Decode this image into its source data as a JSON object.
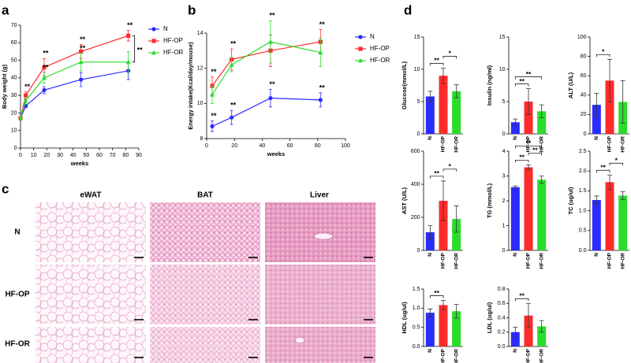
{
  "panel_labels": {
    "a": "a",
    "b": "b",
    "c": "c",
    "d": "d"
  },
  "histology": {
    "columns": [
      "eWAT",
      "BAT",
      "Liver"
    ],
    "rows": [
      "N",
      "HF-OP",
      "HF-OR"
    ]
  },
  "chart_data": [
    {
      "type": "line",
      "ylabel": "Body weight (g)",
      "xlabel": "weeks",
      "x": [
        0,
        4,
        18,
        46,
        82
      ],
      "xlim": [
        0,
        90
      ],
      "xticks": [
        0,
        10,
        20,
        30,
        40,
        50,
        60,
        70,
        80,
        90
      ],
      "ylim": [
        0,
        70
      ],
      "yticks": [
        0,
        10,
        20,
        30,
        40,
        50,
        60,
        70
      ],
      "legend": "right",
      "series": [
        {
          "name": "N",
          "color": "#2b2bff",
          "marker": "circle",
          "values": [
            17,
            24,
            33,
            39,
            44
          ],
          "errors": [
            1,
            1,
            2,
            4,
            5
          ]
        },
        {
          "name": "HF-OP",
          "color": "#ff2b2b",
          "marker": "square",
          "values": [
            17,
            30,
            46,
            55,
            64
          ],
          "errors": [
            1,
            2,
            5,
            4,
            3
          ]
        },
        {
          "name": "HF-OR",
          "color": "#2bdc2b",
          "marker": "triangle",
          "values": [
            17,
            27,
            40,
            49,
            49
          ],
          "errors": [
            1,
            2,
            3,
            5,
            6
          ]
        }
      ],
      "annotations": [
        {
          "text": "**",
          "series": "HF-OP",
          "x": 4
        },
        {
          "text": "**",
          "series": "HF-OP",
          "x": 18
        },
        {
          "text": "**",
          "series": "HF-OR",
          "x": 18
        },
        {
          "text": "**",
          "series": "HF-OP",
          "x": 46
        },
        {
          "text": "**",
          "series": "HF-OR",
          "x": 46
        },
        {
          "text": "**",
          "series": "HF-OP",
          "x": 82
        },
        {
          "text": "**",
          "between": [
            "HF-OP",
            "HF-OR"
          ]
        }
      ]
    },
    {
      "type": "line",
      "ylabel": "Energy intake(Kcal/day/mouse)",
      "xlabel": "weeks",
      "x": [
        4,
        18,
        46,
        82
      ],
      "xlim": [
        0,
        100
      ],
      "xticks": [
        0,
        20,
        40,
        60,
        80,
        100
      ],
      "ylim": [
        8,
        14
      ],
      "yticks": [
        8,
        10,
        12,
        14
      ],
      "legend": "right",
      "series": [
        {
          "name": "N",
          "color": "#2b2bff",
          "marker": "circle",
          "values": [
            8.7,
            9.2,
            10.3,
            10.2
          ],
          "errors": [
            0.3,
            0.4,
            0.5,
            0.4
          ]
        },
        {
          "name": "HF-OP",
          "color": "#ff2b2b",
          "marker": "square",
          "values": [
            11,
            12.5,
            13,
            13.5
          ],
          "errors": [
            0.5,
            0.6,
            0.9,
            0.7
          ]
        },
        {
          "name": "HF-OR",
          "color": "#2bdc2b",
          "marker": "triangle",
          "values": [
            10.5,
            12.2,
            13.5,
            12.9
          ],
          "errors": [
            0.5,
            0.4,
            1.2,
            0.8
          ]
        }
      ],
      "annotations": [
        {
          "text": "**",
          "series": "HF-OP",
          "x": 4
        },
        {
          "text": "**",
          "series": "HF-OP",
          "x": 18
        },
        {
          "text": "**",
          "series": "HF-OR",
          "x": 46
        },
        {
          "text": "**",
          "series": "HF-OP",
          "x": 82
        },
        {
          "text": "**",
          "series": "N",
          "x": 4
        },
        {
          "text": "**",
          "series": "N",
          "x": 18
        },
        {
          "text": "**",
          "series": "N",
          "x": 46
        },
        {
          "text": "**",
          "series": "N",
          "x": 82
        }
      ]
    },
    {
      "type": "bar",
      "ylabel": "Glucose(mmol/L)",
      "categories": [
        "N",
        "HF-OP",
        "HF-OR"
      ],
      "colors": [
        "#2b2bff",
        "#ff2b2b",
        "#2bdc2b"
      ],
      "values": [
        5.8,
        9.0,
        6.6
      ],
      "errors": [
        0.8,
        1.2,
        1.0
      ],
      "ylim": [
        0,
        15
      ],
      "yticks": [
        0,
        5,
        10,
        15
      ],
      "brackets": [
        {
          "label": "**",
          "between": [
            "N",
            "HF-OP"
          ]
        },
        {
          "label": "*",
          "between": [
            "HF-OP",
            "HF-OR"
          ]
        }
      ]
    },
    {
      "type": "bar",
      "ylabel": "Insulin (ng/ml)",
      "categories": [
        "N",
        "HF-OP",
        "HF-OR"
      ],
      "colors": [
        "#2b2bff",
        "#ff2b2b",
        "#2bdc2b"
      ],
      "values": [
        1.8,
        5.0,
        3.5
      ],
      "errors": [
        0.5,
        2.0,
        1.0
      ],
      "ylim": [
        0,
        15
      ],
      "yticks": [
        0,
        5,
        10,
        15
      ],
      "brackets": [
        {
          "label": "**",
          "between": [
            "N",
            "HF-OP"
          ]
        },
        {
          "label": "**",
          "between": [
            "N",
            "HF-OR"
          ]
        }
      ]
    },
    {
      "type": "bar",
      "ylabel": "ALT (U/L)",
      "categories": [
        "N",
        "HF-OP",
        "HF-OR"
      ],
      "colors": [
        "#2b2bff",
        "#ff2b2b",
        "#2bdc2b"
      ],
      "values": [
        30,
        55,
        33
      ],
      "errors": [
        12,
        22,
        22
      ],
      "ylim": [
        0,
        100
      ],
      "yticks": [
        0,
        20,
        40,
        60,
        80,
        100
      ],
      "brackets": [
        {
          "label": "*",
          "between": [
            "N",
            "HF-OP"
          ]
        }
      ]
    },
    {
      "type": "bar",
      "ylabel": "AST (U/L)",
      "categories": [
        "N",
        "HF-OP",
        "HF-OR"
      ],
      "colors": [
        "#2b2bff",
        "#ff2b2b",
        "#2bdc2b"
      ],
      "values": [
        110,
        300,
        190
      ],
      "errors": [
        40,
        120,
        80
      ],
      "ylim": [
        0,
        600
      ],
      "yticks": [
        0,
        200,
        400,
        600
      ],
      "brackets": [
        {
          "label": "**",
          "between": [
            "N",
            "HF-OP"
          ]
        },
        {
          "label": "*",
          "between": [
            "HF-OP",
            "HF-OR"
          ]
        }
      ]
    },
    {
      "type": "bar",
      "ylabel": "TG (mmol/L)",
      "categories": [
        "N",
        "HF-OP",
        "HF-OR"
      ],
      "colors": [
        "#2b2bff",
        "#ff2b2b",
        "#2bdc2b"
      ],
      "values": [
        2.55,
        3.35,
        2.85
      ],
      "errors": [
        0.05,
        0.1,
        0.15
      ],
      "ylim": [
        0,
        4
      ],
      "yticks": [
        0,
        1,
        2,
        3,
        4
      ],
      "brackets": [
        {
          "label": "**",
          "between": [
            "N",
            "HF-OP"
          ]
        },
        {
          "label": "**",
          "between": [
            "HF-OP",
            "HF-OR"
          ]
        },
        {
          "label": "**",
          "between": [
            "N",
            "HF-OR"
          ]
        }
      ]
    },
    {
      "type": "bar",
      "ylabel": "TC (ug/ul)",
      "categories": [
        "N",
        "HF-OP",
        "HF-OR"
      ],
      "colors": [
        "#2b2bff",
        "#ff2b2b",
        "#2bdc2b"
      ],
      "values": [
        1.27,
        1.72,
        1.38
      ],
      "errors": [
        0.1,
        0.18,
        0.1
      ],
      "ylim": [
        0,
        2.5
      ],
      "yticks": [
        {
          "value": 0,
          "label": "0.0"
        },
        0.5,
        {
          "value": 1,
          "label": "1.0"
        },
        1.5,
        {
          "value": 2,
          "label": "2.0"
        },
        2.5
      ],
      "brackets": [
        {
          "label": "**",
          "between": [
            "N",
            "HF-OP"
          ]
        },
        {
          "label": "*",
          "between": [
            "HF-OP",
            "HF-OR"
          ]
        }
      ]
    },
    {
      "type": "bar",
      "ylabel": "HDL (ug/ul)",
      "categories": [
        "N",
        "HF-OP",
        "HF-OR"
      ],
      "colors": [
        "#2b2bff",
        "#ff2b2b",
        "#2bdc2b"
      ],
      "values": [
        0.88,
        1.08,
        0.92
      ],
      "errors": [
        0.1,
        0.12,
        0.18
      ],
      "ylim": [
        0,
        1.5
      ],
      "yticks": [
        {
          "value": 0,
          "label": "0.0"
        },
        0.5,
        {
          "value": 1,
          "label": "1.0"
        },
        1.5
      ],
      "brackets": [
        {
          "label": "**",
          "between": [
            "N",
            "HF-OP"
          ]
        }
      ]
    },
    {
      "type": "bar",
      "ylabel": "LDL (ug/ul)",
      "categories": [
        "N",
        "HF-OP",
        "HF-OR"
      ],
      "colors": [
        "#2b2bff",
        "#ff2b2b",
        "#2bdc2b"
      ],
      "values": [
        0.2,
        0.43,
        0.28
      ],
      "errors": [
        0.07,
        0.17,
        0.08
      ],
      "ylim": [
        0,
        0.8
      ],
      "yticks": [
        {
          "value": 0,
          "label": "0.0"
        },
        0.2,
        0.4,
        0.6,
        0.8
      ],
      "brackets": [
        {
          "label": "**",
          "between": [
            "N",
            "HF-OP"
          ]
        }
      ]
    }
  ]
}
